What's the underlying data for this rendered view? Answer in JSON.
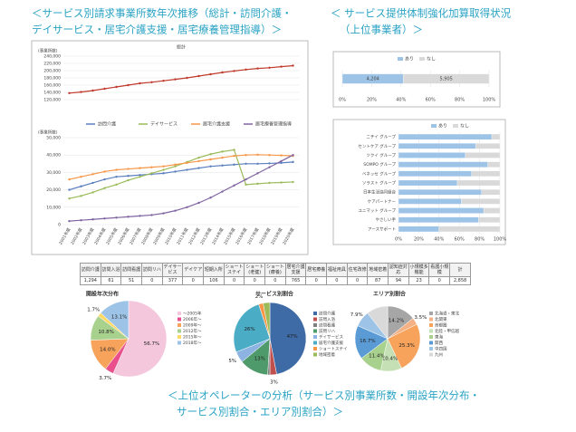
{
  "headings": {
    "left": [
      "＜サービス別請求事業所数年次推移（総計・訪問介護・",
      "デイサービス・居宅介護支援・居宅療養管理指導）＞"
    ],
    "right": [
      "＜ サービス提供体制強化加算取得状況",
      "（上位事業者）＞"
    ],
    "bottom": [
      "＜上位オペレーターの分析（サービス別事業所数・開設年次分布・",
      "サービス別割合・エリア別割合）＞"
    ]
  },
  "chart_data": [
    {
      "type": "line",
      "title": "総計",
      "y_label": "(事業所数)",
      "series": [
        {
          "name": "総計",
          "color": "#c0392b",
          "values": [
            138000,
            141000,
            145000,
            150000,
            155000,
            160000,
            165000,
            168000,
            172000,
            176000,
            180000,
            185000,
            190000,
            195000,
            199000,
            203000,
            206000,
            208000,
            211000,
            213755
          ]
        }
      ],
      "ylim": [
        120000,
        240000
      ],
      "yticks": [
        {
          "value": 120000,
          "label": "120,000"
        },
        {
          "value": 140000,
          "label": "140,000"
        },
        {
          "value": 160000,
          "label": "160,000"
        },
        {
          "value": 180000,
          "label": "180,000"
        },
        {
          "value": 200000,
          "label": "200,000"
        },
        {
          "value": 220000,
          "label": "220,000"
        },
        {
          "value": 240000,
          "label": "240,000"
        }
      ],
      "grid": true
    },
    {
      "type": "line",
      "y_label": "(事業所数)",
      "categories": [
        "2001年度",
        "2002年度",
        "2003年度",
        "2004年度",
        "2005年度",
        "2006年度",
        "2007年度",
        "2008年度",
        "2009年度",
        "2010年度",
        "2011年度",
        "2012年度",
        "2013年度",
        "2014年度",
        "2015年度",
        "2016年度",
        "2017年度",
        "2018年度",
        "2019年度",
        "2020年度"
      ],
      "series": [
        {
          "name": "訪問介護",
          "color": "#5b7fbf",
          "values": [
            20000,
            22000,
            24000,
            26000,
            27500,
            28000,
            28500,
            29000,
            29500,
            30500,
            31500,
            32500,
            33500,
            34000,
            34500,
            35000,
            35000,
            35200,
            35500,
            36000
          ]
        },
        {
          "name": "デイサービス",
          "color": "#9bbb59",
          "values": [
            15000,
            16500,
            18500,
            21000,
            23000,
            25500,
            27500,
            29500,
            31500,
            33500,
            36000,
            38500,
            40500,
            42000,
            43000,
            23000,
            23500,
            24000,
            24200,
            24500
          ]
        },
        {
          "name": "居宅介護支援",
          "color": "#f79646",
          "values": [
            26000,
            27500,
            29000,
            30500,
            31500,
            32000,
            32500,
            33000,
            33500,
            34500,
            35500,
            36500,
            37500,
            38500,
            39500,
            40000,
            40200,
            40000,
            39800,
            39500
          ]
        },
        {
          "name": "居宅療養管理指導",
          "color": "#8064a2",
          "values": [
            2000,
            2500,
            3000,
            3500,
            4000,
            4500,
            5000,
            5500,
            6500,
            8000,
            10000,
            12500,
            15500,
            19000,
            22500,
            26000,
            29500,
            33000,
            36500,
            40000
          ]
        }
      ],
      "ylim": [
        0,
        50000
      ],
      "yticks": [
        0,
        {
          "value": 10000,
          "label": "10,000"
        },
        {
          "value": 20000,
          "label": "20,000"
        },
        {
          "value": 30000,
          "label": "30,000"
        },
        {
          "value": 40000,
          "label": "40,000"
        },
        {
          "value": 50000,
          "label": "50,000"
        }
      ],
      "grid": true
    },
    {
      "type": "hbar",
      "percent_stack": true,
      "series": [
        {
          "name": "あり",
          "color": "#9dc3e6",
          "values": [
            4204
          ],
          "value_labels": [
            "4,204"
          ]
        },
        {
          "name": "なし",
          "color": "#d9d9d9",
          "values": [
            5905
          ],
          "value_labels": [
            "5,905"
          ]
        }
      ],
      "xticks": [
        {
          "value": 0,
          "label": "0%"
        },
        {
          "value": 20,
          "label": "20%"
        },
        {
          "value": 40,
          "label": "40%"
        },
        {
          "value": 60,
          "label": "60%"
        },
        {
          "value": 80,
          "label": "80%"
        },
        {
          "value": 100,
          "label": "100%"
        }
      ],
      "xlim": [
        0,
        100
      ]
    },
    {
      "type": "hbar",
      "percent_stack": true,
      "categories": [
        "ニチイ グループ",
        "セントケア グループ",
        "ツクイ グループ",
        "SOMPO グループ",
        "ベネッセ グループ",
        "ソラスト グループ",
        "日本生活協同組合",
        "ケアパートナー",
        "ユニマット グループ",
        "やさしい手",
        "アースサポート"
      ],
      "series": [
        {
          "name": "あり",
          "color": "#9dc3e6",
          "values": [
            92,
            76,
            66,
            88,
            72,
            58,
            82,
            62,
            84,
            79,
            40
          ]
        },
        {
          "name": "なし",
          "color": "#d9d9d9",
          "values": [
            8,
            24,
            34,
            12,
            28,
            42,
            18,
            38,
            16,
            21,
            60
          ]
        }
      ],
      "xticks": [
        {
          "value": 0,
          "label": "0%"
        },
        {
          "value": 20,
          "label": "20%"
        },
        {
          "value": 40,
          "label": "40%"
        },
        {
          "value": 60,
          "label": "60%"
        },
        {
          "value": 80,
          "label": "80%"
        },
        {
          "value": 100,
          "label": "100%"
        }
      ],
      "xlim": [
        0,
        100
      ]
    },
    {
      "type": "pie",
      "title": "開設年次分布",
      "categories": [
        "〜2005年",
        "2006年〜",
        "2009年〜",
        "2012年〜",
        "2015年〜",
        "2018年〜"
      ],
      "values": [
        56.7,
        3.7,
        14.0,
        10.8,
        1.7,
        13.1
      ],
      "value_labels": [
        "56.7%",
        "3.7%",
        "14.0%",
        "10.8%",
        "1.7%",
        "13.1%"
      ],
      "colors": [
        "#f4c7dc",
        "#e84f8c",
        "#f7a35c",
        "#a9d18e",
        "#ffd966",
        "#9dc3e6"
      ]
    },
    {
      "type": "pie",
      "title": "サービス別割合",
      "categories": [
        "訪問介護",
        "訪問入浴",
        "訪問看護",
        "訪問リハ",
        "デイサービス",
        "居宅介護支援",
        "ショートステイ",
        "地域密着"
      ],
      "values": [
        47,
        3,
        1,
        13,
        5,
        26,
        2,
        3
      ],
      "value_labels": [
        "47%",
        "3%",
        null,
        "13%",
        "5%",
        "26%",
        "2%",
        null
      ],
      "colors": [
        "#3e6aa5",
        "#c0504d",
        "#7f7f7f",
        "#4f9a6a",
        "#8db3e2",
        "#4bacc6",
        "#f79646",
        "#9bbb59"
      ]
    },
    {
      "type": "pie",
      "title": "エリア別割合",
      "categories": [
        "北海道・東北",
        "北関東",
        "首都圏",
        "北陸・甲信越",
        "東海",
        "関西",
        "中四国",
        "九州"
      ],
      "values": [
        14.2,
        3.5,
        25.3,
        10.4,
        11.4,
        16.7,
        7.9,
        10.6
      ],
      "value_labels": [
        "14.2%",
        "3.5%",
        "25.3%",
        "10.4%",
        "11.4%",
        "16.7%",
        "7.9%",
        null
      ],
      "colors": [
        "#a6a6a6",
        "#f4b183",
        "#f7a35c",
        "#c5e0b4",
        "#a9d18e",
        "#5b9bd5",
        "#9dc3e6",
        "#d9d9d9"
      ]
    }
  ],
  "table": {
    "header": [
      "訪問介護",
      "訪問入浴",
      "訪問看護",
      "訪問リハ",
      "デイサービス",
      "デイケア",
      "短期入所",
      "ショートステイ",
      "ショート(老健)",
      "ショート(療養)",
      "居宅介護支援",
      "居宅療養",
      "福祉用具",
      "住宅改修",
      "地域密着",
      "認知症対応",
      "小規模多機能",
      "看護小規模",
      "計"
    ],
    "rows": [
      [
        "1,294",
        "61",
        "51",
        "0",
        "377",
        "0",
        "106",
        "0",
        "0",
        "0",
        "765",
        "0",
        "0",
        "0",
        "87",
        "94",
        "23",
        "0",
        "2,858"
      ]
    ]
  }
}
